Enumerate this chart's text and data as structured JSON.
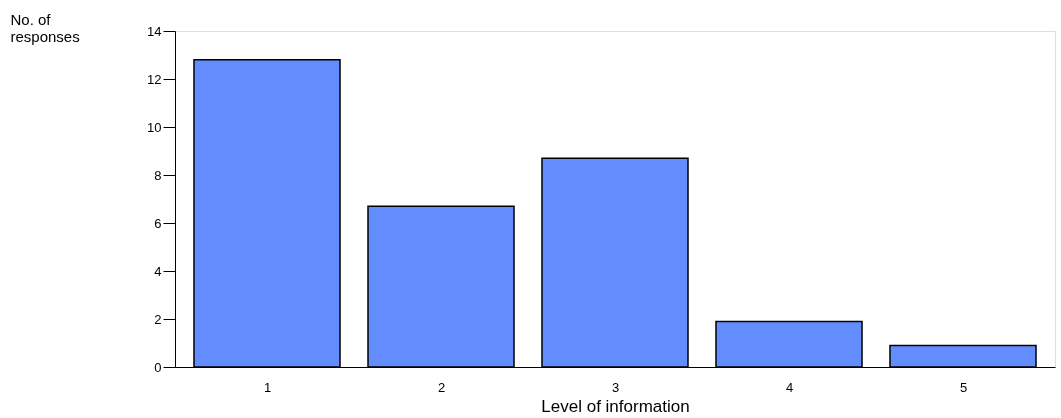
{
  "chart_data": {
    "type": "bar",
    "xlabel": "Level of information",
    "ylabel": "No. of responses",
    "categories": [
      "1",
      "2",
      "3",
      "4",
      "5"
    ],
    "values": [
      12.8,
      6.7,
      8.7,
      1.9,
      0.9
    ],
    "color": "#638cff",
    "ylim": [
      0,
      14
    ],
    "yticks": [
      0,
      2,
      4,
      6,
      8,
      10,
      12,
      14
    ],
    "grid": false
  }
}
